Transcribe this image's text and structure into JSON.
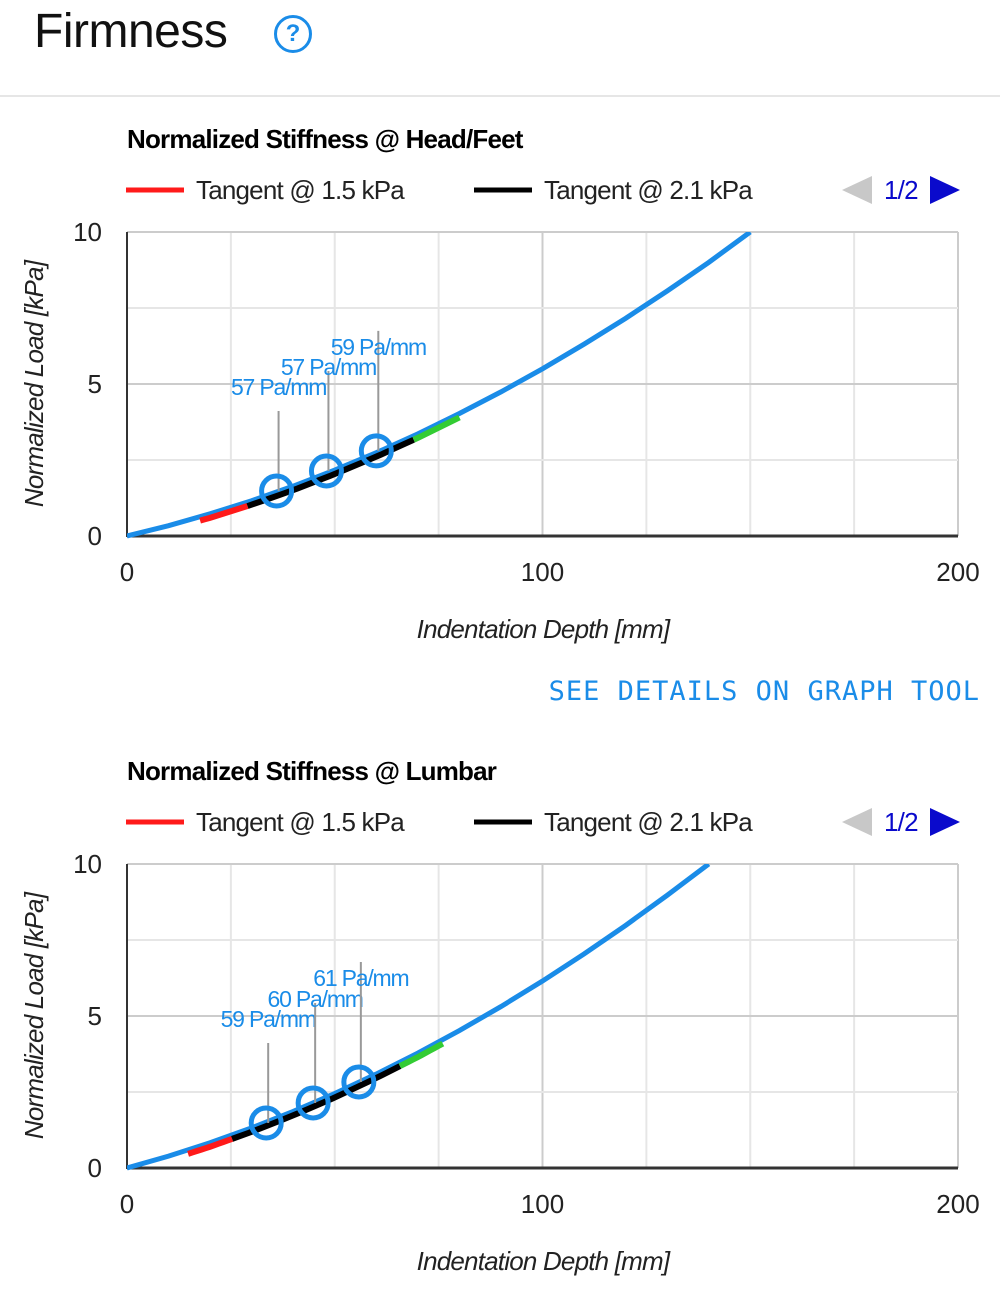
{
  "header": {
    "title": "Firmness",
    "help_icon": "question-circle-icon",
    "help_label": "?"
  },
  "details_link": "SEE DETAILS ON GRAPH TOOL",
  "colors": {
    "curve": "#1a8ce8",
    "tangent_1_5": "#ff1a1a",
    "tangent_2_1": "#000000",
    "extra_segment": "#33cc33",
    "annotation": "#1a8ce8",
    "pager_active": "#0a0acc",
    "pager_inactive": "#c8c8c8"
  },
  "chart_data": [
    {
      "type": "line",
      "title": "Normalized Stiffness @ Head/Feet",
      "xlabel": "Indentation Depth [mm]",
      "ylabel": "Normalized Load [kPa]",
      "xlim": [
        0,
        200
      ],
      "ylim": [
        0,
        10
      ],
      "xticks": [
        "0",
        "100",
        "200"
      ],
      "xtick_values": [
        0,
        100,
        200
      ],
      "yticks": [
        "0",
        "5",
        "10"
      ],
      "ytick_values": [
        0,
        5,
        10
      ],
      "grid": true,
      "legend": {
        "placement": "top",
        "entries": [
          "Tangent @ 1.5 kPa",
          "Tangent @ 2.1 kPa"
        ],
        "pager": "1/2"
      },
      "curve": {
        "x": [
          0,
          10,
          20,
          30,
          40,
          50,
          60,
          70,
          80,
          90,
          100,
          110,
          120,
          130,
          140,
          150
        ],
        "y": [
          0,
          0.34,
          0.73,
          1.16,
          1.64,
          2.17,
          2.74,
          3.36,
          4.03,
          4.74,
          5.5,
          6.31,
          7.16,
          8.06,
          9.0,
          10.0
        ]
      },
      "segments": [
        {
          "name": "Tangent @ 1.5 kPa",
          "color": "#ff1a1a",
          "x": [
            17.6,
            29
          ]
        },
        {
          "name": "Tangent @ 2.1 kPa",
          "color": "#000000",
          "x": [
            29,
            69
          ]
        },
        {
          "color": "#33cc33",
          "x": [
            69,
            80
          ]
        }
      ],
      "annotations": [
        {
          "x": 36,
          "y": 1.48,
          "label": "57 Pa/mm"
        },
        {
          "x": 48,
          "y": 2.14,
          "label": "57 Pa/mm"
        },
        {
          "x": 60,
          "y": 2.8,
          "label": "59 Pa/mm"
        }
      ]
    },
    {
      "type": "line",
      "title": "Normalized Stiffness @ Lumbar",
      "xlabel": "Indentation Depth [mm]",
      "ylabel": "Normalized Load [kPa]",
      "xlim": [
        0,
        200
      ],
      "ylim": [
        0,
        10
      ],
      "xticks": [
        "0",
        "100",
        "200"
      ],
      "xtick_values": [
        0,
        100,
        200
      ],
      "yticks": [
        "0",
        "5",
        "10"
      ],
      "ytick_values": [
        0,
        5,
        10
      ],
      "grid": true,
      "legend": {
        "placement": "top",
        "entries": [
          "Tangent @ 1.5 kPa",
          "Tangent @ 2.1 kPa"
        ],
        "pager": "1/2"
      },
      "curve": {
        "x": [
          0,
          10,
          20,
          30,
          40,
          50,
          60,
          70,
          80,
          90,
          100,
          110,
          120,
          130,
          140
        ],
        "y": [
          0,
          0.39,
          0.83,
          1.32,
          1.86,
          2.45,
          3.09,
          3.78,
          4.52,
          5.31,
          6.15,
          7.04,
          7.98,
          8.97,
          10.0
        ]
      },
      "segments": [
        {
          "name": "Tangent @ 1.5 kPa",
          "color": "#ff1a1a",
          "x": [
            14.7,
            25.3
          ]
        },
        {
          "name": "Tangent @ 2.1 kPa",
          "color": "#000000",
          "x": [
            25.3,
            65.7
          ]
        },
        {
          "color": "#33cc33",
          "x": [
            65.7,
            76
          ]
        }
      ],
      "annotations": [
        {
          "x": 33.5,
          "y": 1.48,
          "label": "59 Pa/mm"
        },
        {
          "x": 44.8,
          "y": 2.14,
          "label": "60 Pa/mm"
        },
        {
          "x": 55.8,
          "y": 2.83,
          "label": "61 Pa/mm"
        }
      ]
    }
  ]
}
